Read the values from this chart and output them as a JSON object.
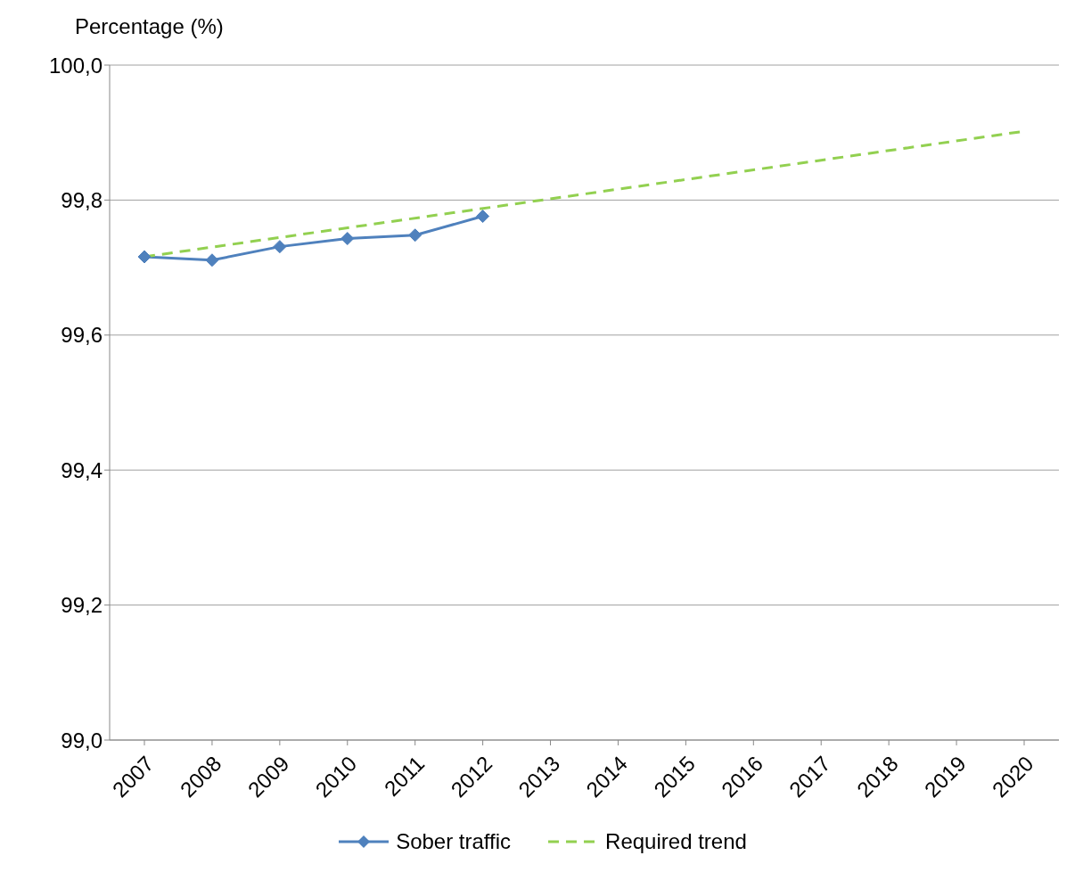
{
  "chart_data": {
    "type": "line",
    "ylabel": "Percentage (%)",
    "categories": [
      "2007",
      "2008",
      "2009",
      "2010",
      "2011",
      "2012",
      "2013",
      "2014",
      "2015",
      "2016",
      "2017",
      "2018",
      "2019",
      "2020"
    ],
    "series": [
      {
        "name": "Sober traffic",
        "color": "#4f81bd",
        "marker": "diamond",
        "line_style": "solid",
        "values": [
          99.716,
          99.711,
          99.731,
          99.743,
          99.748,
          99.776,
          null,
          null,
          null,
          null,
          null,
          null,
          null,
          null
        ]
      },
      {
        "name": "Required trend",
        "color": "#92d050",
        "marker": "none",
        "line_style": "dashed",
        "values": [
          99.716,
          null,
          null,
          null,
          null,
          null,
          null,
          null,
          null,
          null,
          null,
          null,
          null,
          99.902
        ]
      }
    ],
    "ylim": [
      99.0,
      100.0
    ],
    "yticks": [
      {
        "value": 99.0,
        "label": "99,0"
      },
      {
        "value": 99.2,
        "label": "99,2"
      },
      {
        "value": 99.4,
        "label": "99,4"
      },
      {
        "value": 99.6,
        "label": "99,6"
      },
      {
        "value": 99.8,
        "label": "99,8"
      },
      {
        "value": 100.0,
        "label": "100,0"
      }
    ],
    "grid": "y",
    "legend": "bottom"
  }
}
